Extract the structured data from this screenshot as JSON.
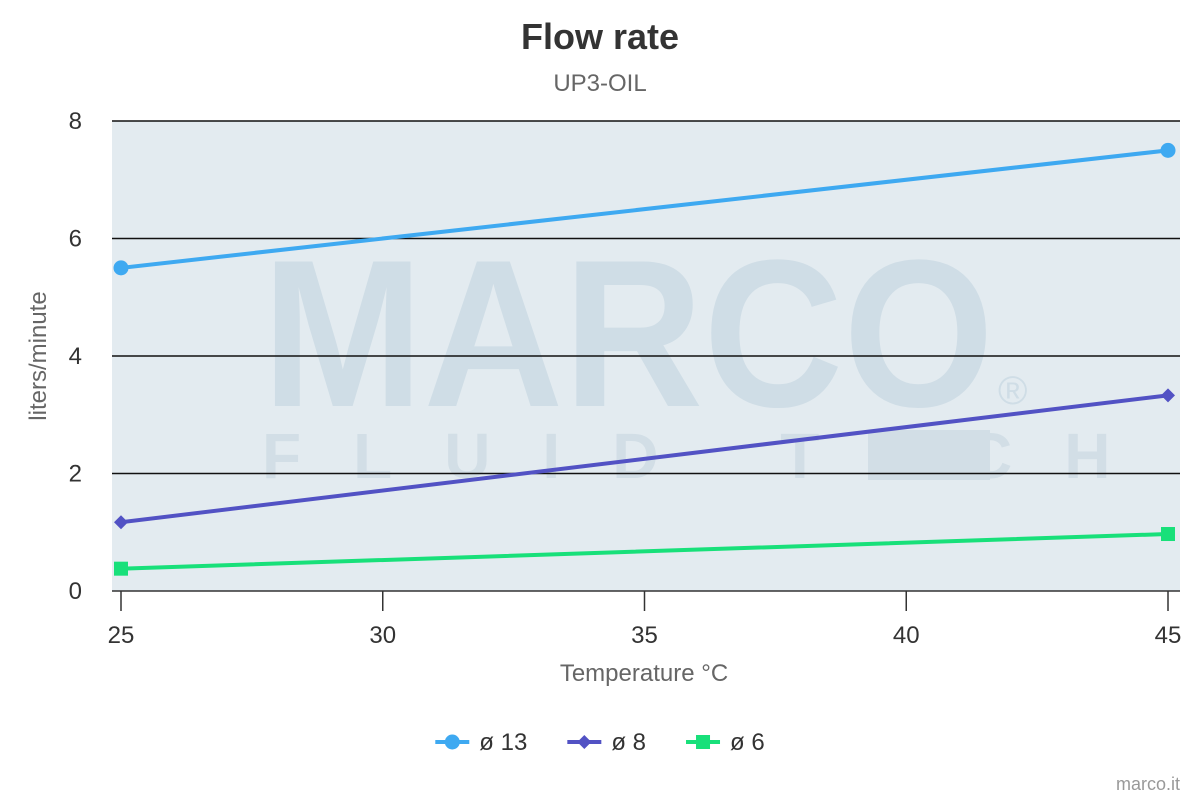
{
  "chart_data": {
    "type": "line",
    "title": "Flow rate",
    "subtitle": "UP3-OIL",
    "xlabel": "Temperature °C",
    "ylabel": "liters/minute",
    "x": [
      25,
      45
    ],
    "x_ticks": [
      25,
      30,
      35,
      40,
      45
    ],
    "y_ticks": [
      0,
      2,
      4,
      6,
      8
    ],
    "xlim": [
      25,
      45
    ],
    "ylim": [
      0,
      8
    ],
    "grid": true,
    "legend_position": "bottom-center",
    "series": [
      {
        "name": "ø 13",
        "values": [
          5.5,
          7.5
        ],
        "color": "#3ea9f1",
        "marker": "circle"
      },
      {
        "name": "ø 8",
        "values": [
          1.17,
          3.33
        ],
        "color": "#5252c4",
        "marker": "diamond"
      },
      {
        "name": "ø 6",
        "values": [
          0.38,
          0.97
        ],
        "color": "#18e07a",
        "marker": "square"
      }
    ]
  },
  "watermark": {
    "brand": "MARCO",
    "tagline": "FLUID TECH",
    "registered": "®"
  },
  "plot_background": "#e3ebf0",
  "credit": "marco.it"
}
